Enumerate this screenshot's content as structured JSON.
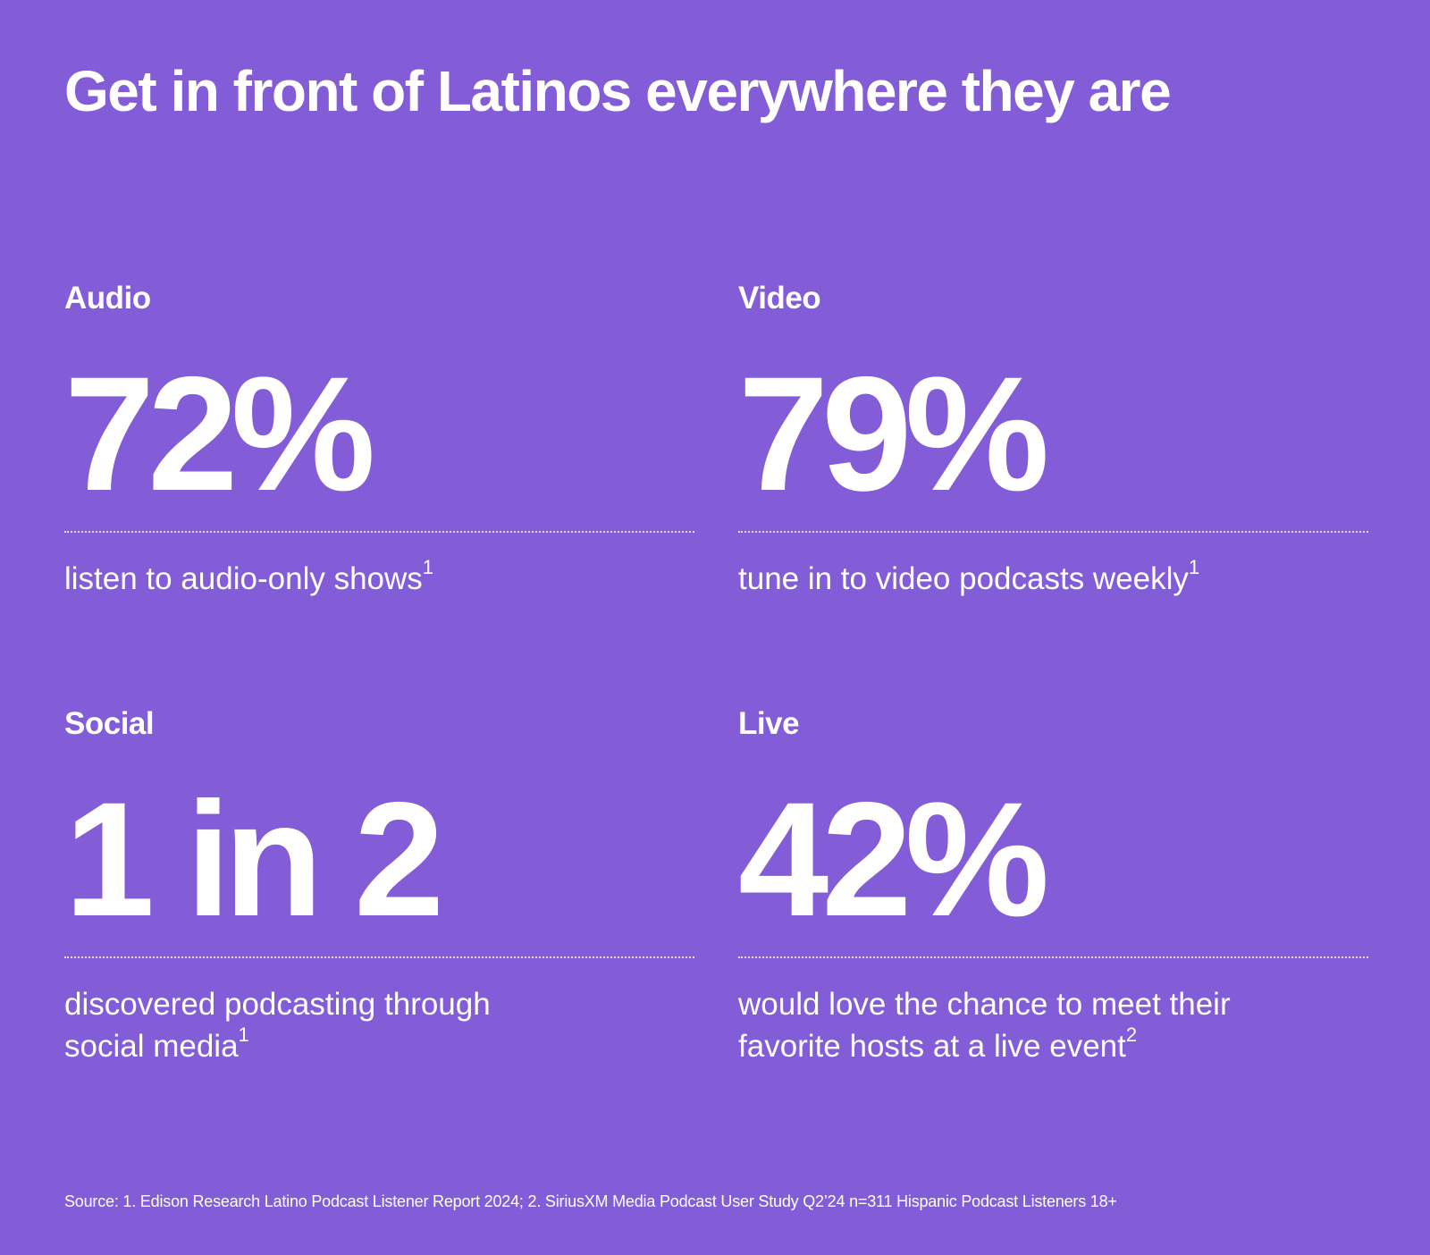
{
  "title": "Get in front of Latinos everywhere they are",
  "stats": [
    {
      "label": "Audio",
      "value": "72%",
      "description": "listen to audio-only shows",
      "footnote_ref": "1"
    },
    {
      "label": "Video",
      "value": "79%",
      "description": "tune in to video podcasts weekly",
      "footnote_ref": "1"
    },
    {
      "label": "Social",
      "value": "1 in 2",
      "description": "discovered podcasting through social media",
      "footnote_ref": "1"
    },
    {
      "label": "Live",
      "value": "42%",
      "description": "would love the chance to meet their favorite hosts at a live event",
      "footnote_ref": "2"
    }
  ],
  "source": "Source: 1. Edison Research Latino Podcast Listener Report 2024;  2. SiriusXM Media Podcast User Study Q2’24 n=311 Hispanic Podcast Listeners 18+",
  "colors": {
    "background": "#835cd7",
    "text": "#ffffff"
  }
}
